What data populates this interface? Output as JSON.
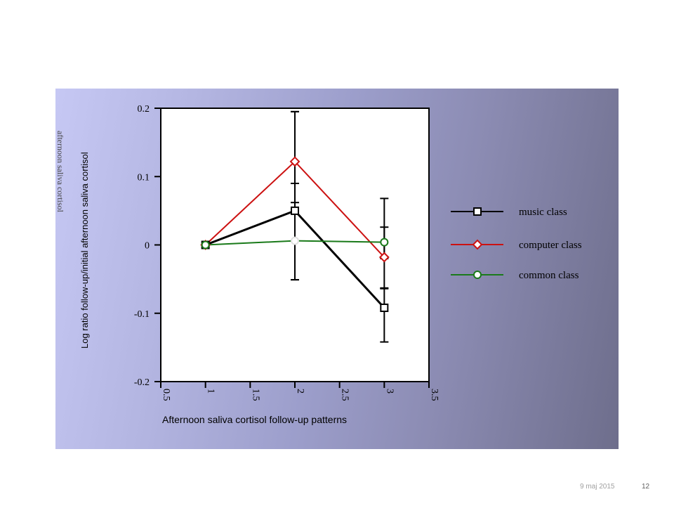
{
  "chart_data": {
    "type": "line",
    "title": "",
    "xlabel": "Afternoon saliva cortisol follow-up patterns",
    "ylabel": "Log ratio follow-up/initial afternoon saliva cortisol",
    "ylabel_ghost": "afternoon saliva cortisol",
    "xlim": [
      0.5,
      3.5
    ],
    "ylim": [
      -0.2,
      0.2
    ],
    "xticks": [
      0.5,
      1,
      1.5,
      2,
      2.5,
      3,
      3.5
    ],
    "xtick_labels": [
      "0.5",
      "1",
      "1.5",
      "2",
      "2.5",
      "3",
      "3.5"
    ],
    "yticks": [
      -0.2,
      -0.1,
      0,
      0.1,
      0.2
    ],
    "ytick_labels": [
      "-0.2",
      "-0.1",
      "0",
      "0.1",
      "0.2"
    ],
    "legend_position": "right",
    "series": [
      {
        "name": "music class",
        "color": "#000000",
        "marker": "square",
        "x": [
          1,
          2,
          3
        ],
        "y": [
          0,
          0.05,
          -0.092
        ],
        "err_low": [
          null,
          -0.051,
          -0.142
        ],
        "err_high": [
          null,
          0.195,
          -0.063
        ]
      },
      {
        "name": "computer class",
        "color": "#cc1111",
        "marker": "diamond",
        "x": [
          1,
          2,
          3
        ],
        "y": [
          0,
          0.122,
          -0.018
        ],
        "err_low": [
          null,
          0.062,
          -0.064
        ],
        "err_high": [
          null,
          0.195,
          0.068
        ]
      },
      {
        "name": "common class",
        "color": "#1a7a1a",
        "marker": "circle",
        "x": [
          1,
          2,
          3
        ],
        "y": [
          0,
          0.006,
          0.004
        ],
        "err_low": [
          null,
          -0.051,
          -0.02
        ],
        "err_high": [
          null,
          0.09,
          0.026
        ]
      }
    ]
  },
  "footer": {
    "date": "9 maj 2015",
    "page": "12"
  }
}
